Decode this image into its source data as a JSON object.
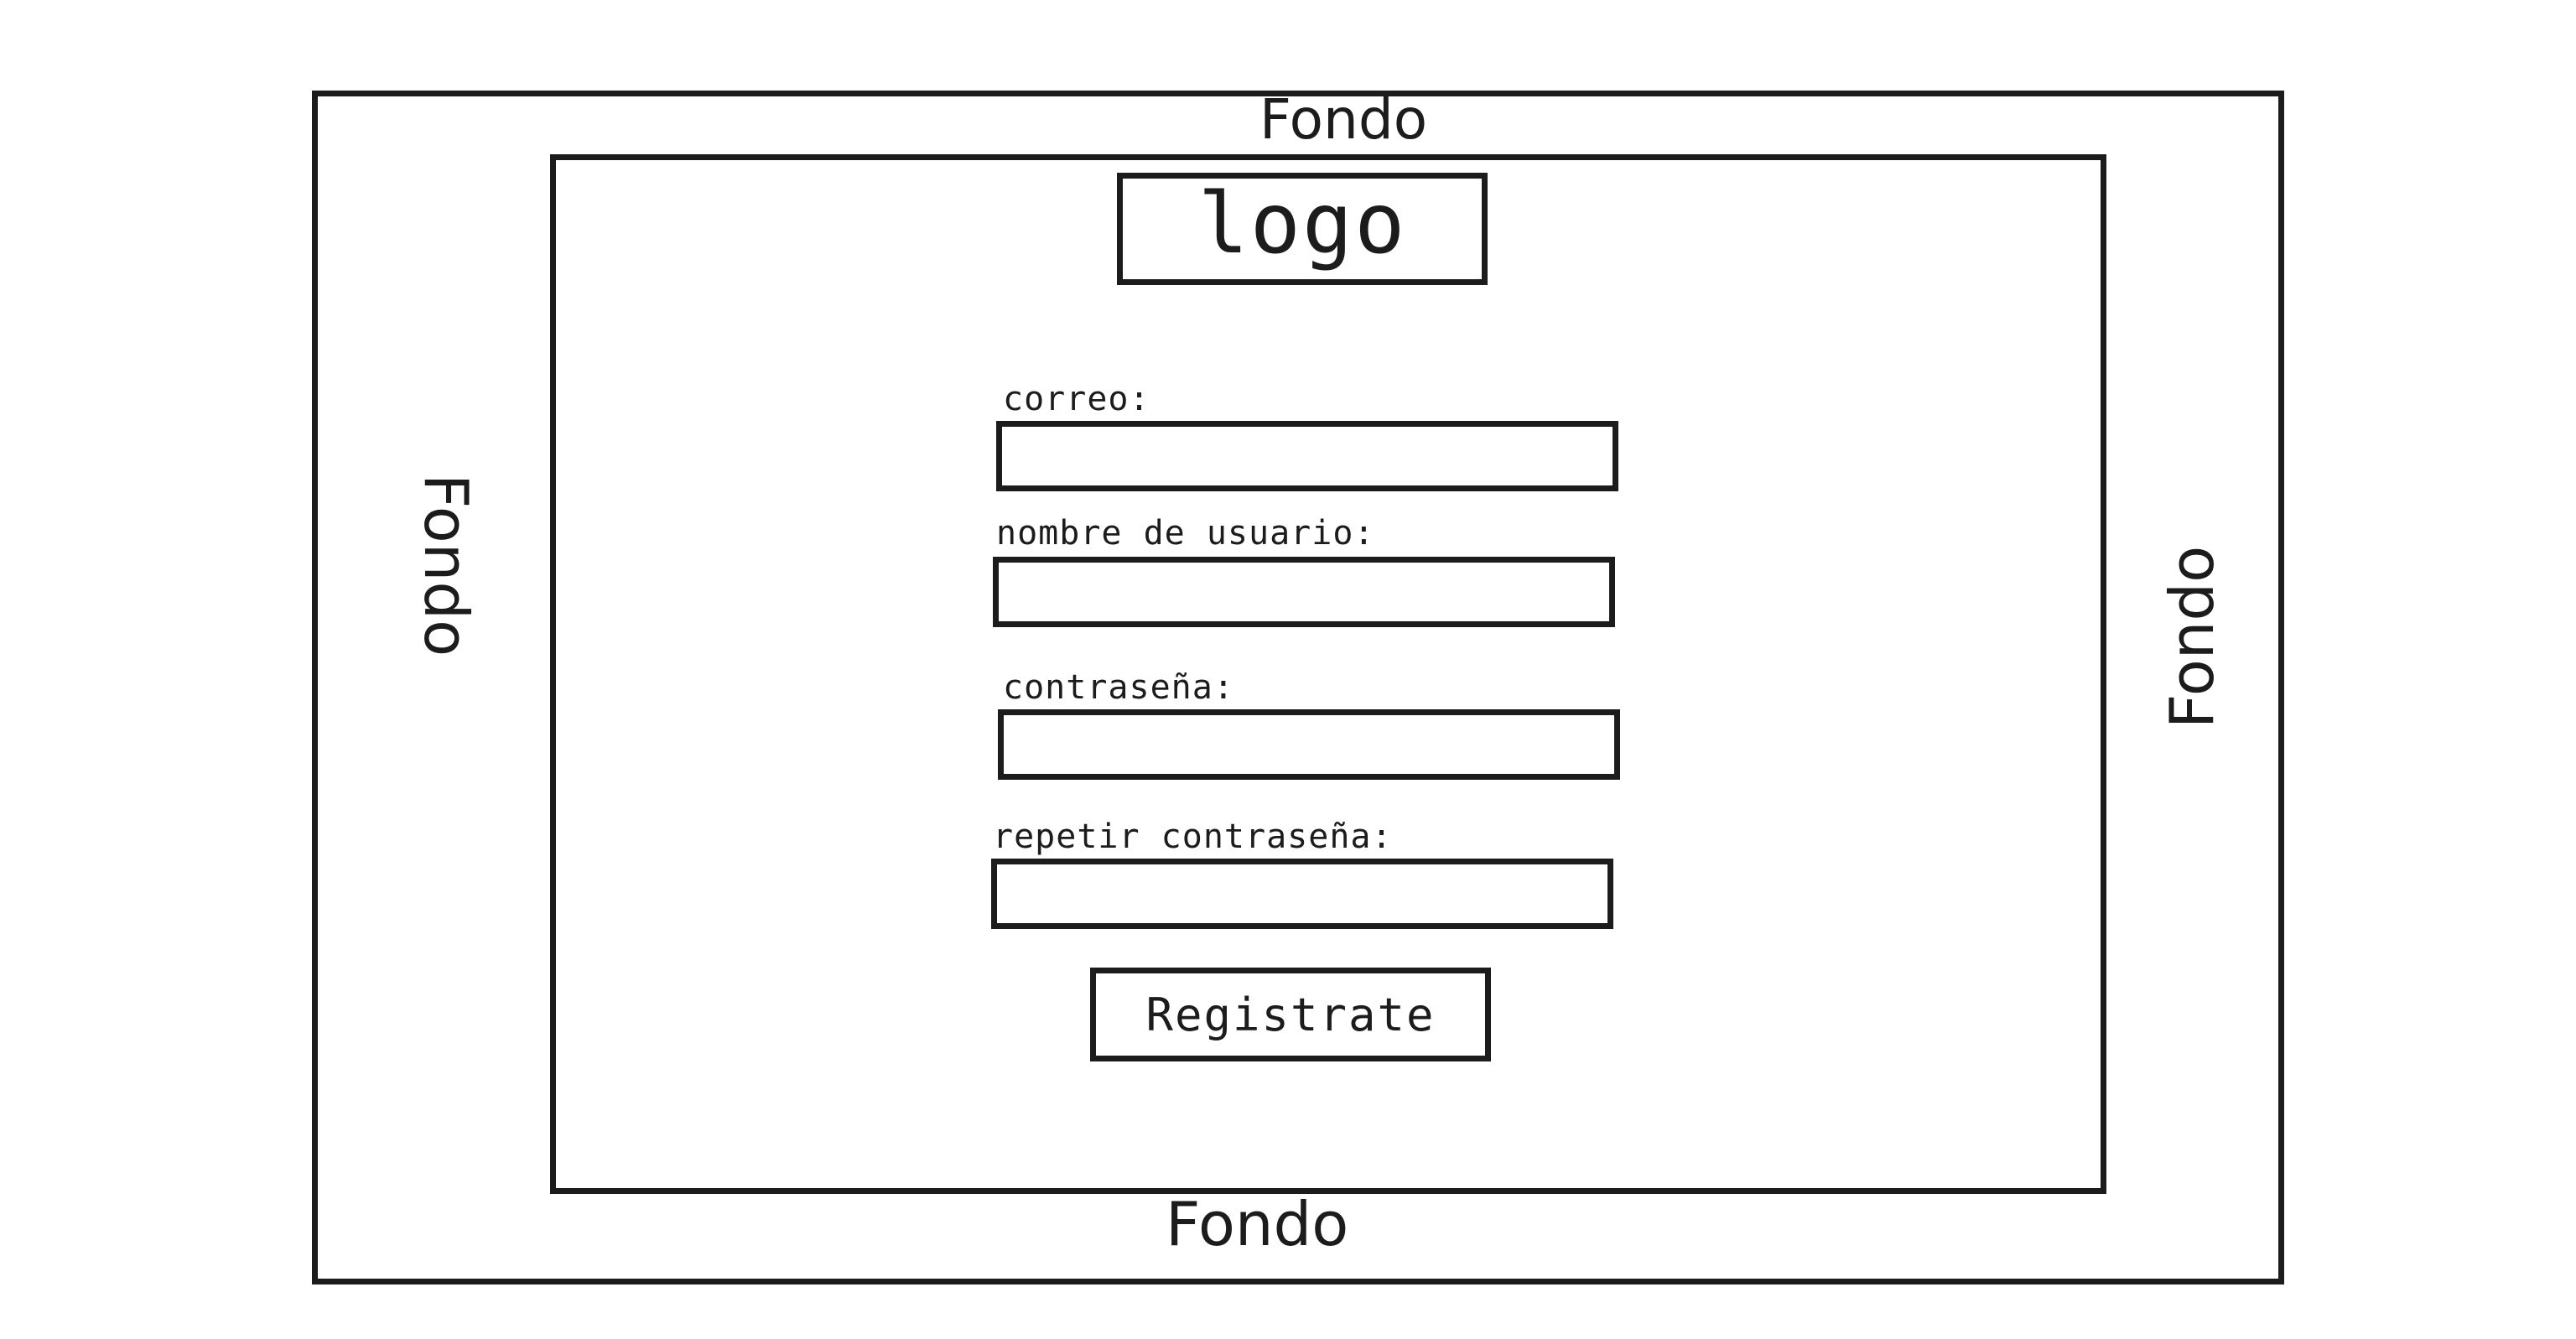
{
  "background": {
    "top_label": "Fondo",
    "left_label": "Fondo",
    "right_label": "Fondo",
    "bottom_label": "Fondo"
  },
  "logo": {
    "text": "logo"
  },
  "form": {
    "email_label": "correo:",
    "email_value": "",
    "username_label": "nombre de usuario:",
    "username_value": "",
    "password_label": "contraseña:",
    "password_value": "",
    "repeat_password_label": "repetir contraseña:",
    "repeat_password_value": "",
    "submit_label": "Registrate"
  },
  "colors": {
    "stroke": "#1c1c1c",
    "background": "#ffffff"
  }
}
